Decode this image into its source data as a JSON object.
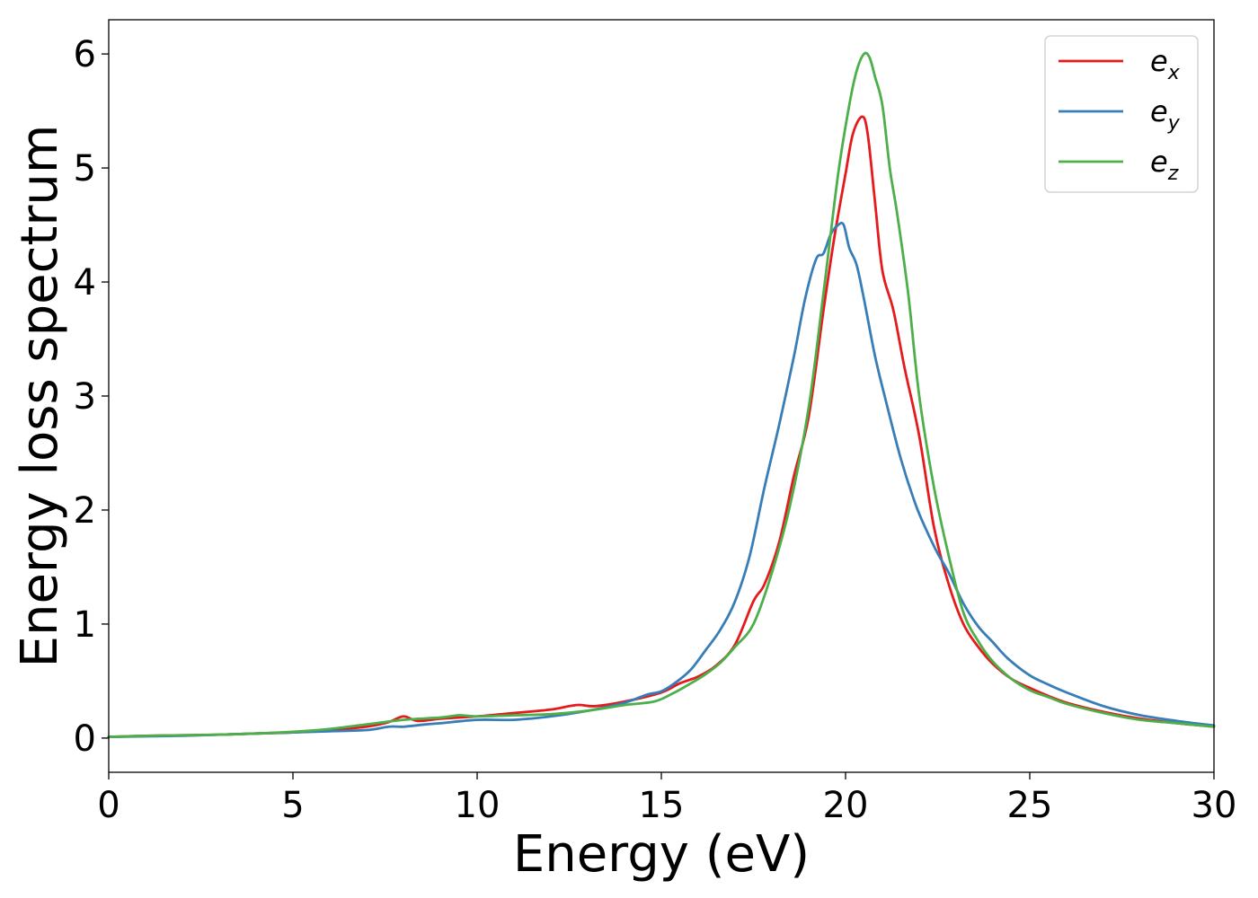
{
  "chart_data": {
    "type": "line",
    "title": "",
    "xlabel": "Energy (eV)",
    "ylabel": "Energy loss spectrum",
    "xlim": [
      0,
      30
    ],
    "ylim": [
      -0.3,
      6.3
    ],
    "xticks": [
      0,
      5,
      10,
      15,
      20,
      25,
      30
    ],
    "yticks": [
      0,
      1,
      2,
      3,
      4,
      5,
      6
    ],
    "grid": false,
    "legend": "top-right",
    "series": [
      {
        "name": "ex",
        "label_base": "e",
        "label_sub": "x",
        "color": "#e41a1c",
        "x": [
          0,
          1,
          2,
          3,
          4,
          5,
          6,
          7,
          7.6,
          8.0,
          8.4,
          9,
          10,
          11,
          12,
          12.7,
          13.2,
          14,
          15,
          15.5,
          16,
          16.5,
          17,
          17.5,
          17.8,
          18.2,
          18.6,
          19.0,
          19.4,
          19.7,
          20.0,
          20.2,
          20.45,
          20.6,
          20.8,
          21.0,
          21.3,
          21.6,
          22.0,
          22.4,
          22.8,
          23.2,
          23.6,
          24.0,
          24.5,
          25,
          25.5,
          26,
          27,
          28,
          29,
          30
        ],
        "y": [
          0.01,
          0.02,
          0.025,
          0.03,
          0.04,
          0.05,
          0.07,
          0.1,
          0.14,
          0.19,
          0.15,
          0.17,
          0.19,
          0.22,
          0.25,
          0.29,
          0.28,
          0.32,
          0.4,
          0.48,
          0.54,
          0.64,
          0.82,
          1.2,
          1.35,
          1.72,
          2.3,
          2.82,
          3.75,
          4.4,
          4.95,
          5.3,
          5.45,
          5.3,
          4.7,
          4.1,
          3.75,
          3.25,
          2.65,
          1.85,
          1.35,
          1.0,
          0.8,
          0.65,
          0.52,
          0.44,
          0.37,
          0.31,
          0.23,
          0.17,
          0.13,
          0.1
        ]
      },
      {
        "name": "ey",
        "label_base": "e",
        "label_sub": "y",
        "color": "#377eb8",
        "x": [
          0,
          1,
          2,
          3,
          4,
          5,
          6,
          7,
          7.6,
          8.0,
          8.6,
          9,
          10,
          11,
          12,
          13,
          14,
          14.6,
          15.0,
          15.4,
          15.8,
          16.2,
          16.6,
          17.0,
          17.4,
          17.8,
          18.2,
          18.6,
          18.9,
          19.2,
          19.4,
          19.6,
          19.8,
          19.95,
          20.1,
          20.3,
          20.5,
          20.8,
          21.1,
          21.5,
          21.9,
          22.2,
          22.5,
          22.8,
          23.2,
          23.6,
          24.0,
          24.4,
          25,
          25.5,
          26,
          27,
          28,
          29,
          30
        ],
        "y": [
          0.01,
          0.015,
          0.02,
          0.03,
          0.04,
          0.05,
          0.06,
          0.07,
          0.1,
          0.1,
          0.12,
          0.13,
          0.16,
          0.16,
          0.19,
          0.24,
          0.31,
          0.38,
          0.41,
          0.49,
          0.6,
          0.77,
          0.95,
          1.2,
          1.6,
          2.2,
          2.75,
          3.35,
          3.85,
          4.2,
          4.25,
          4.42,
          4.5,
          4.5,
          4.3,
          4.15,
          3.85,
          3.35,
          2.95,
          2.45,
          2.05,
          1.82,
          1.62,
          1.45,
          1.18,
          0.98,
          0.84,
          0.7,
          0.55,
          0.47,
          0.4,
          0.28,
          0.2,
          0.15,
          0.11
        ]
      },
      {
        "name": "ez",
        "label_base": "e",
        "label_sub": "z",
        "color": "#4daf4a",
        "x": [
          0,
          1,
          2,
          3,
          4,
          5,
          6,
          7,
          8,
          9,
          9.5,
          10,
          11,
          12,
          13,
          14,
          14.8,
          15.3,
          15.8,
          16.2,
          16.6,
          17.0,
          17.5,
          18.0,
          18.5,
          19.0,
          19.4,
          19.8,
          20.1,
          20.3,
          20.5,
          20.65,
          20.8,
          21.0,
          21.2,
          21.4,
          21.7,
          22.0,
          22.4,
          22.8,
          23.2,
          23.6,
          24.0,
          24.5,
          25,
          25.5,
          26,
          27,
          28,
          29,
          30
        ],
        "y": [
          0.01,
          0.02,
          0.025,
          0.03,
          0.04,
          0.055,
          0.08,
          0.12,
          0.16,
          0.18,
          0.2,
          0.19,
          0.2,
          0.21,
          0.24,
          0.29,
          0.32,
          0.39,
          0.48,
          0.56,
          0.66,
          0.8,
          1.0,
          1.45,
          2.05,
          2.9,
          3.9,
          4.95,
          5.55,
          5.85,
          6.0,
          5.97,
          5.8,
          5.55,
          5.0,
          4.6,
          3.9,
          3.0,
          2.2,
          1.6,
          1.1,
          0.85,
          0.67,
          0.52,
          0.42,
          0.36,
          0.3,
          0.22,
          0.16,
          0.13,
          0.1
        ]
      }
    ]
  }
}
